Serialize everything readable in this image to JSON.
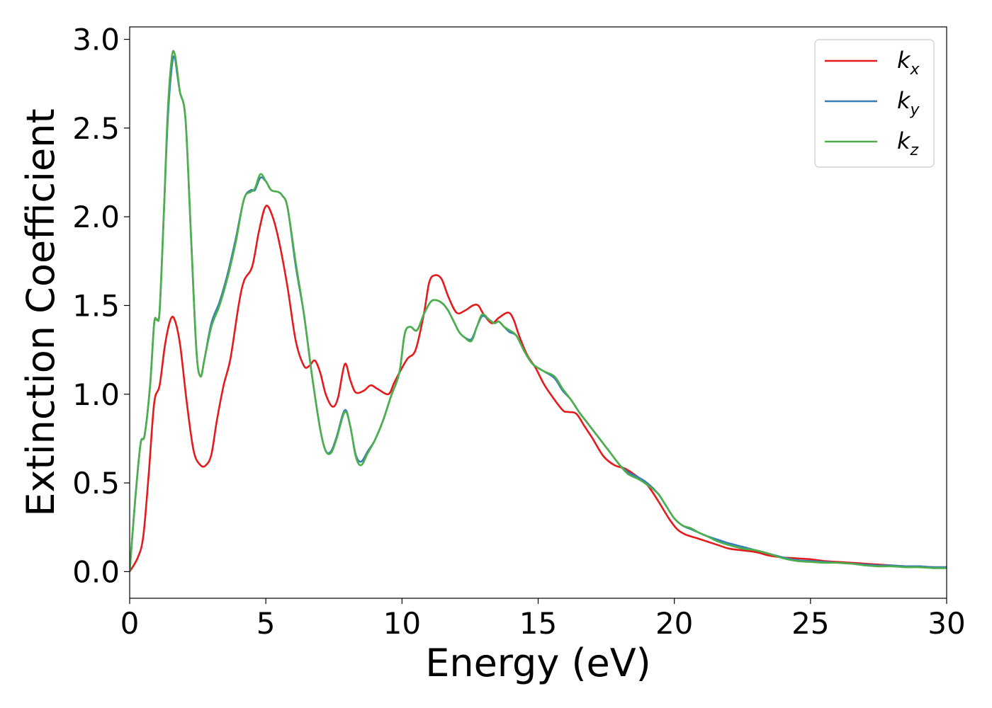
{
  "chart_data": {
    "type": "line",
    "title": "",
    "xlabel": "Energy (eV)",
    "ylabel": "Extinction Coefficient",
    "xlim": [
      0,
      30
    ],
    "ylim": [
      -0.15,
      3.07
    ],
    "xticks": [
      0,
      5,
      10,
      15,
      20,
      25,
      30
    ],
    "xtick_labels": [
      "0",
      "5",
      "10",
      "15",
      "20",
      "25",
      "30"
    ],
    "yticks": [
      0.0,
      0.5,
      1.0,
      1.5,
      2.0,
      2.5,
      3.0
    ],
    "ytick_labels": [
      "0.0",
      "0.5",
      "1.0",
      "1.5",
      "2.0",
      "2.5",
      "3.0"
    ],
    "grid": false,
    "legend_position": "top-right",
    "series": [
      {
        "name": "k_x",
        "legend_main": "k",
        "legend_sub": "x",
        "color": "#e41a1c",
        "x": [
          0,
          0.3,
          0.5,
          0.7,
          0.9,
          1.1,
          1.3,
          1.5,
          1.65,
          1.85,
          2.1,
          2.35,
          2.6,
          2.8,
          3.0,
          3.2,
          3.45,
          3.7,
          4.0,
          4.2,
          4.5,
          4.75,
          5.0,
          5.25,
          5.5,
          5.8,
          6.1,
          6.4,
          6.6,
          6.8,
          7.0,
          7.2,
          7.45,
          7.65,
          7.9,
          8.1,
          8.3,
          8.6,
          8.85,
          9.1,
          9.5,
          9.7,
          9.9,
          10.2,
          10.5,
          10.8,
          11.0,
          11.2,
          11.45,
          11.7,
          12.0,
          12.3,
          12.6,
          12.8,
          13.0,
          13.3,
          13.55,
          13.9,
          14.1,
          14.3,
          14.6,
          14.9,
          15.2,
          15.5,
          15.9,
          16.1,
          16.4,
          16.7,
          17.0,
          17.4,
          17.8,
          18.2,
          18.6,
          19.0,
          19.4,
          19.8,
          20.1,
          20.4,
          20.8,
          21.2,
          21.6,
          22.0,
          22.5,
          23.0,
          23.5,
          24.0,
          24.5,
          25.0,
          25.5,
          26.0,
          26.5,
          27.0,
          27.5,
          28.0,
          28.5,
          29.0,
          29.5,
          30.0
        ],
        "y": [
          0.0,
          0.08,
          0.2,
          0.55,
          0.95,
          1.05,
          1.28,
          1.42,
          1.42,
          1.28,
          0.95,
          0.68,
          0.6,
          0.6,
          0.66,
          0.85,
          1.05,
          1.2,
          1.5,
          1.64,
          1.72,
          1.92,
          2.06,
          2.0,
          1.85,
          1.6,
          1.3,
          1.16,
          1.16,
          1.19,
          1.12,
          1.0,
          0.93,
          0.98,
          1.17,
          1.08,
          1.01,
          1.02,
          1.05,
          1.03,
          1.0,
          1.06,
          1.12,
          1.2,
          1.25,
          1.45,
          1.63,
          1.67,
          1.65,
          1.55,
          1.46,
          1.47,
          1.5,
          1.5,
          1.45,
          1.4,
          1.43,
          1.46,
          1.42,
          1.33,
          1.22,
          1.15,
          1.06,
          0.99,
          0.91,
          0.9,
          0.89,
          0.82,
          0.75,
          0.65,
          0.6,
          0.58,
          0.54,
          0.49,
          0.4,
          0.3,
          0.24,
          0.21,
          0.19,
          0.17,
          0.15,
          0.13,
          0.12,
          0.11,
          0.09,
          0.08,
          0.075,
          0.07,
          0.06,
          0.055,
          0.05,
          0.045,
          0.04,
          0.035,
          0.03,
          0.03,
          0.025,
          0.025
        ]
      },
      {
        "name": "k_y",
        "legend_main": "k",
        "legend_sub": "y",
        "color": "#377eb8",
        "x": [
          0,
          0.2,
          0.4,
          0.55,
          0.75,
          0.9,
          1.0,
          1.1,
          1.25,
          1.4,
          1.55,
          1.65,
          1.75,
          1.85,
          2.05,
          2.25,
          2.45,
          2.6,
          2.75,
          3.0,
          3.3,
          3.6,
          3.9,
          4.2,
          4.45,
          4.6,
          4.8,
          5.0,
          5.2,
          5.45,
          5.6,
          5.8,
          6.1,
          6.4,
          6.7,
          7.0,
          7.2,
          7.4,
          7.6,
          7.9,
          8.1,
          8.3,
          8.5,
          8.75,
          9.0,
          9.3,
          9.6,
          9.9,
          10.1,
          10.3,
          10.55,
          10.8,
          11.05,
          11.25,
          11.5,
          11.7,
          11.9,
          12.1,
          12.3,
          12.55,
          12.75,
          12.95,
          13.2,
          13.4,
          13.55,
          13.75,
          13.95,
          14.2,
          14.5,
          14.8,
          15.2,
          15.6,
          15.9,
          16.2,
          16.5,
          16.8,
          17.1,
          17.4,
          17.7,
          18.0,
          18.3,
          18.7,
          19.0,
          19.4,
          19.7,
          20.0,
          20.3,
          20.6,
          20.9,
          21.2,
          21.6,
          22.0,
          22.5,
          23.0,
          23.5,
          24.0,
          24.5,
          25.0,
          25.5,
          26.0,
          26.5,
          27.0,
          27.5,
          28.0,
          28.5,
          29.0,
          29.5,
          30.0
        ],
        "y": [
          0.0,
          0.4,
          0.72,
          0.77,
          1.05,
          1.4,
          1.42,
          1.47,
          2.0,
          2.55,
          2.85,
          2.9,
          2.8,
          2.7,
          2.55,
          1.9,
          1.25,
          1.1,
          1.2,
          1.4,
          1.52,
          1.68,
          1.88,
          2.1,
          2.15,
          2.15,
          2.22,
          2.2,
          2.15,
          2.14,
          2.12,
          2.05,
          1.72,
          1.45,
          1.1,
          0.8,
          0.68,
          0.68,
          0.76,
          0.91,
          0.82,
          0.66,
          0.62,
          0.68,
          0.74,
          0.85,
          0.99,
          1.12,
          1.34,
          1.38,
          1.36,
          1.45,
          1.52,
          1.53,
          1.51,
          1.47,
          1.41,
          1.35,
          1.32,
          1.31,
          1.38,
          1.44,
          1.42,
          1.4,
          1.41,
          1.38,
          1.35,
          1.33,
          1.24,
          1.17,
          1.13,
          1.09,
          1.02,
          0.97,
          0.9,
          0.84,
          0.78,
          0.72,
          0.66,
          0.6,
          0.56,
          0.53,
          0.5,
          0.44,
          0.37,
          0.3,
          0.26,
          0.24,
          0.22,
          0.2,
          0.18,
          0.16,
          0.14,
          0.12,
          0.1,
          0.08,
          0.065,
          0.06,
          0.055,
          0.05,
          0.045,
          0.04,
          0.035,
          0.035,
          0.03,
          0.03,
          0.025,
          0.025
        ]
      },
      {
        "name": "k_z",
        "legend_main": "k",
        "legend_sub": "z",
        "color": "#4daf4a",
        "x": [
          0,
          0.2,
          0.4,
          0.55,
          0.75,
          0.9,
          1.0,
          1.1,
          1.25,
          1.4,
          1.55,
          1.65,
          1.75,
          1.85,
          2.05,
          2.25,
          2.45,
          2.6,
          2.75,
          3.0,
          3.3,
          3.6,
          3.9,
          4.2,
          4.45,
          4.6,
          4.8,
          5.0,
          5.2,
          5.45,
          5.6,
          5.8,
          6.1,
          6.4,
          6.7,
          7.0,
          7.2,
          7.4,
          7.6,
          7.9,
          8.1,
          8.3,
          8.5,
          8.75,
          9.0,
          9.3,
          9.6,
          9.9,
          10.1,
          10.3,
          10.55,
          10.8,
          11.05,
          11.25,
          11.5,
          11.7,
          11.9,
          12.1,
          12.3,
          12.55,
          12.75,
          12.95,
          13.2,
          13.4,
          13.55,
          13.75,
          13.95,
          14.2,
          14.5,
          14.8,
          15.2,
          15.6,
          15.9,
          16.2,
          16.5,
          16.8,
          17.1,
          17.4,
          17.7,
          18.0,
          18.3,
          18.7,
          19.0,
          19.4,
          19.7,
          20.0,
          20.3,
          20.6,
          20.9,
          21.2,
          21.6,
          22.0,
          22.5,
          23.0,
          23.5,
          24.0,
          24.5,
          25.0,
          25.5,
          26.0,
          26.5,
          27.0,
          27.5,
          28.0,
          28.5,
          29.0,
          29.5,
          30.0
        ],
        "y": [
          0.0,
          0.4,
          0.72,
          0.77,
          1.05,
          1.4,
          1.42,
          1.47,
          2.0,
          2.6,
          2.9,
          2.92,
          2.82,
          2.7,
          2.55,
          1.9,
          1.25,
          1.1,
          1.2,
          1.38,
          1.5,
          1.66,
          1.86,
          2.1,
          2.14,
          2.16,
          2.24,
          2.2,
          2.15,
          2.14,
          2.12,
          2.05,
          1.74,
          1.45,
          1.1,
          0.8,
          0.68,
          0.67,
          0.75,
          0.9,
          0.82,
          0.65,
          0.6,
          0.67,
          0.74,
          0.85,
          0.99,
          1.12,
          1.34,
          1.38,
          1.36,
          1.45,
          1.52,
          1.53,
          1.51,
          1.47,
          1.41,
          1.35,
          1.32,
          1.3,
          1.38,
          1.45,
          1.42,
          1.4,
          1.41,
          1.38,
          1.36,
          1.33,
          1.24,
          1.17,
          1.13,
          1.1,
          1.03,
          0.97,
          0.9,
          0.84,
          0.78,
          0.72,
          0.66,
          0.6,
          0.55,
          0.52,
          0.49,
          0.44,
          0.37,
          0.3,
          0.26,
          0.245,
          0.22,
          0.2,
          0.17,
          0.15,
          0.13,
          0.12,
          0.1,
          0.075,
          0.06,
          0.055,
          0.05,
          0.05,
          0.045,
          0.035,
          0.03,
          0.03,
          0.025,
          0.025,
          0.02,
          0.02
        ]
      }
    ]
  }
}
